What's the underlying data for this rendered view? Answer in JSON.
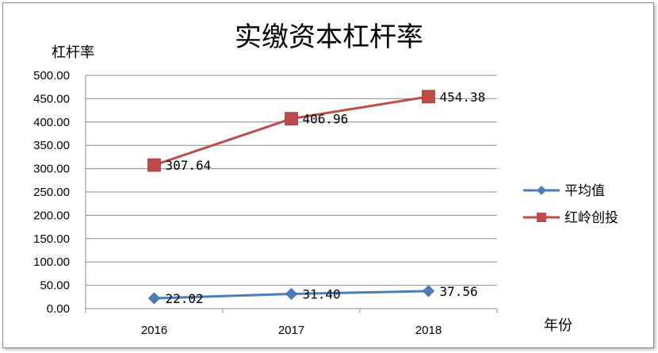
{
  "chart_data": {
    "type": "line",
    "title": "实缴资本杠杆率",
    "ylabel": "杠杆率",
    "xlabel": "年份",
    "categories": [
      "2016",
      "2017",
      "2018"
    ],
    "ylim": [
      0,
      500
    ],
    "yticks": [
      "0.00",
      "50.00",
      "100.00",
      "150.00",
      "200.00",
      "250.00",
      "300.00",
      "350.00",
      "400.00",
      "450.00",
      "500.00"
    ],
    "grid": true,
    "legend": "right",
    "series": [
      {
        "name": "平均值",
        "values": [
          22.02,
          31.4,
          37.56
        ],
        "labels": [
          "22.02",
          "31.40",
          "37.56"
        ],
        "color": "#4a7ebb",
        "marker": "diamond"
      },
      {
        "name": "红岭创投",
        "values": [
          307.64,
          406.96,
          454.38
        ],
        "labels": [
          "307.64",
          "406.96",
          "454.38"
        ],
        "color": "#be4b48",
        "marker": "square"
      }
    ]
  }
}
